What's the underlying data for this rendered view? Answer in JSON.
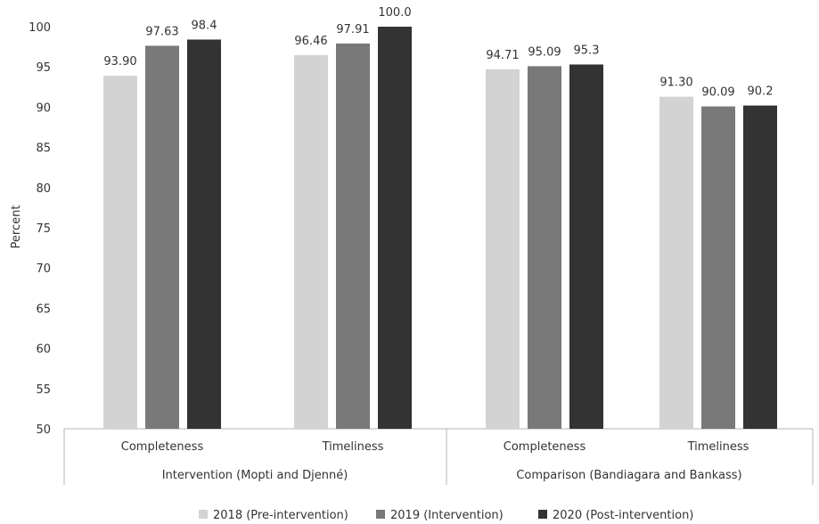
{
  "chart_data": {
    "type": "bar",
    "ylabel": "Percent",
    "ylim": [
      50,
      100
    ],
    "y_ticks": [
      "50",
      "55",
      "60",
      "65",
      "70",
      "75",
      "80",
      "85",
      "90",
      "95",
      "100"
    ],
    "groups": [
      {
        "name": "Intervention (Mopti and Djenné)",
        "categories": [
          "Completeness",
          "Timeliness"
        ]
      },
      {
        "name": "Comparison (Bandiagara and Bankass)",
        "categories": [
          "Completeness",
          "Timeliness"
        ]
      }
    ],
    "categories": [
      "Completeness",
      "Timeliness",
      "Completeness",
      "Timeliness"
    ],
    "series": [
      {
        "name": "2018 (Pre-intervention)",
        "color": "#d3d3d3",
        "values": [
          93.9,
          96.46,
          94.71,
          91.3
        ],
        "labels": [
          "93.90",
          "96.46",
          "94.71",
          "91.30"
        ]
      },
      {
        "name": "2019 (Intervention)",
        "color": "#797979",
        "values": [
          97.63,
          97.91,
          95.09,
          90.09
        ],
        "labels": [
          "97.63",
          "97.91",
          "95.09",
          "90.09"
        ]
      },
      {
        "name": "2020 (Post-intervention)",
        "color": "#333333",
        "values": [
          98.4,
          100.0,
          95.3,
          90.2
        ],
        "labels": [
          "98.4",
          "100.0",
          "95.3",
          "90.2"
        ]
      }
    ],
    "legend_position": "bottom",
    "grid": false
  }
}
